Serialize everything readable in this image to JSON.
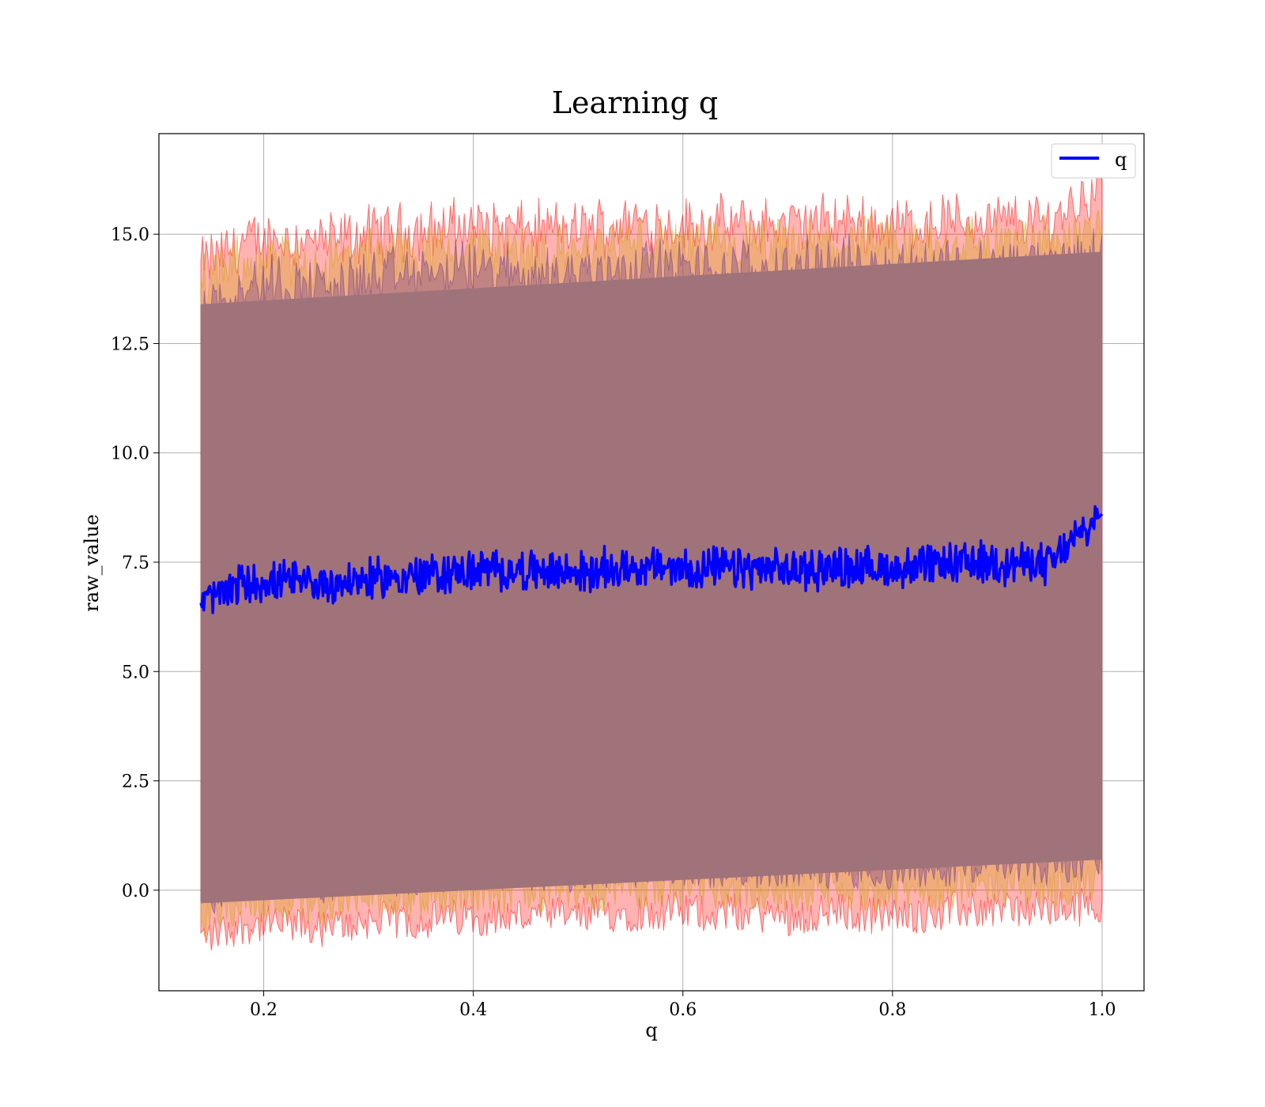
{
  "chart_data": {
    "type": "line",
    "title": "Learning q",
    "xlabel": "q",
    "ylabel": "raw_value",
    "xlim": [
      0.1,
      1.04
    ],
    "ylim": [
      -2.3,
      17.3
    ],
    "x_ticks": [
      0.2,
      0.4,
      0.6,
      0.8,
      1.0
    ],
    "x_tick_labels": [
      "0.2",
      "0.4",
      "0.6",
      "0.8",
      "1.0"
    ],
    "y_ticks": [
      0.0,
      2.5,
      5.0,
      7.5,
      10.0,
      12.5,
      15.0
    ],
    "y_tick_labels": [
      "0.0",
      "2.5",
      "5.0",
      "7.5",
      "10.0",
      "12.5",
      "15.0"
    ],
    "grid": true,
    "legend": {
      "position": "top-right",
      "entries": [
        {
          "label": "q",
          "color": "#0000ff"
        }
      ]
    },
    "colors": {
      "mean_line": "#0000ff",
      "band_outer": "#ff0000",
      "band_inner": "#d4a017",
      "band_core": "#6b3a8f",
      "fill_main": "#a0727a"
    },
    "series": [
      {
        "name": "q",
        "x": [
          0.14,
          0.18,
          0.22,
          0.26,
          0.3,
          0.35,
          0.4,
          0.45,
          0.5,
          0.55,
          0.6,
          0.65,
          0.7,
          0.75,
          0.8,
          0.85,
          0.9,
          0.95,
          1.0
        ],
        "y": [
          6.6,
          7.0,
          7.05,
          7.0,
          7.1,
          7.2,
          7.3,
          7.3,
          7.25,
          7.4,
          7.35,
          7.35,
          7.3,
          7.4,
          7.35,
          7.45,
          7.5,
          7.45,
          8.6
        ]
      }
    ],
    "bands": [
      {
        "x": [
          0.14,
          0.18,
          0.22,
          0.26,
          0.3,
          0.35,
          0.4,
          0.45,
          0.5,
          0.55,
          0.6,
          0.65,
          0.7,
          0.75,
          0.8,
          0.85,
          0.9,
          0.95,
          1.0
        ],
        "upper": [
          14.3,
          14.8,
          14.9,
          14.8,
          15.0,
          15.1,
          15.2,
          15.1,
          15.1,
          15.3,
          15.2,
          15.2,
          15.2,
          15.3,
          15.2,
          15.3,
          15.3,
          15.3,
          16.2
        ],
        "lower": [
          -1.1,
          -0.8,
          -0.8,
          -0.9,
          -0.7,
          -0.7,
          -0.6,
          -0.6,
          -0.6,
          -0.5,
          -0.5,
          -0.5,
          -0.6,
          -0.5,
          -0.6,
          -0.5,
          -0.4,
          -0.5,
          -0.3
        ]
      },
      {
        "x": [
          0.14,
          0.18,
          0.22,
          0.26,
          0.3,
          0.35,
          0.4,
          0.45,
          0.5,
          0.55,
          0.6,
          0.65,
          0.7,
          0.75,
          0.8,
          0.85,
          0.9,
          0.95,
          1.0
        ],
        "upper": [
          13.9,
          14.3,
          14.4,
          14.3,
          14.5,
          14.6,
          14.7,
          14.6,
          14.6,
          14.8,
          14.7,
          14.7,
          14.7,
          14.8,
          14.7,
          14.8,
          14.8,
          14.8,
          15.2
        ],
        "lower": [
          -0.7,
          -0.3,
          -0.3,
          -0.4,
          -0.2,
          -0.2,
          -0.1,
          -0.1,
          -0.1,
          0.0,
          0.0,
          0.0,
          -0.1,
          0.0,
          -0.1,
          0.0,
          0.1,
          0.0,
          0.2
        ]
      },
      {
        "x": [
          0.14,
          0.18,
          0.22,
          0.26,
          0.3,
          0.35,
          0.4,
          0.45,
          0.5,
          0.55,
          0.6,
          0.65,
          0.7,
          0.75,
          0.8,
          0.85,
          0.9,
          0.95,
          1.0
        ],
        "upper": [
          13.4,
          13.8,
          13.9,
          13.8,
          14.0,
          14.1,
          14.2,
          14.1,
          14.1,
          14.3,
          14.2,
          14.2,
          14.2,
          14.3,
          14.2,
          14.3,
          14.3,
          14.3,
          14.6
        ],
        "lower": [
          -0.3,
          0.2,
          0.2,
          0.1,
          0.3,
          0.3,
          0.4,
          0.4,
          0.4,
          0.5,
          0.5,
          0.5,
          0.4,
          0.5,
          0.4,
          0.5,
          0.6,
          0.5,
          0.7
        ]
      }
    ]
  }
}
